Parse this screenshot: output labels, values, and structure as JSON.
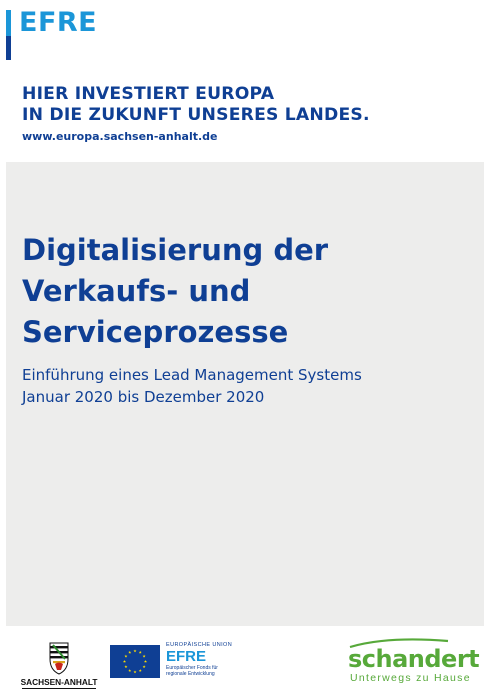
{
  "header": {
    "logo_text": "EFRE",
    "slogan_line1": "HIER INVESTIERT EUROPA",
    "slogan_line2": "IN DIE ZUKUNFT UNSERES LANDES.",
    "url": "www.europa.sachsen-anhalt.de"
  },
  "main": {
    "title_line1": "Digitalisierung der",
    "title_line2": "Verkaufs- und",
    "title_line3": "Serviceprozesse",
    "subtitle_line1": "Einführung eines Lead Management Systems",
    "subtitle_line2": "Januar 2020 bis Dezember 2020"
  },
  "footer": {
    "state_label": "SACHSEN-ANHALT",
    "eu_union_label": "EUROPÄISCHE UNION",
    "eu_fund_name": "EFRE",
    "eu_fund_desc_line1": "Europäischer Fonds für",
    "eu_fund_desc_line2": "regionale Entwicklung",
    "company_name": "schandert",
    "company_tagline": "Unterwegs zu Hause"
  },
  "colors": {
    "brand_dark_blue": "#0f3f94",
    "brand_light_blue": "#1b96d8",
    "panel_gray": "#ededec",
    "company_green": "#57a93a"
  }
}
